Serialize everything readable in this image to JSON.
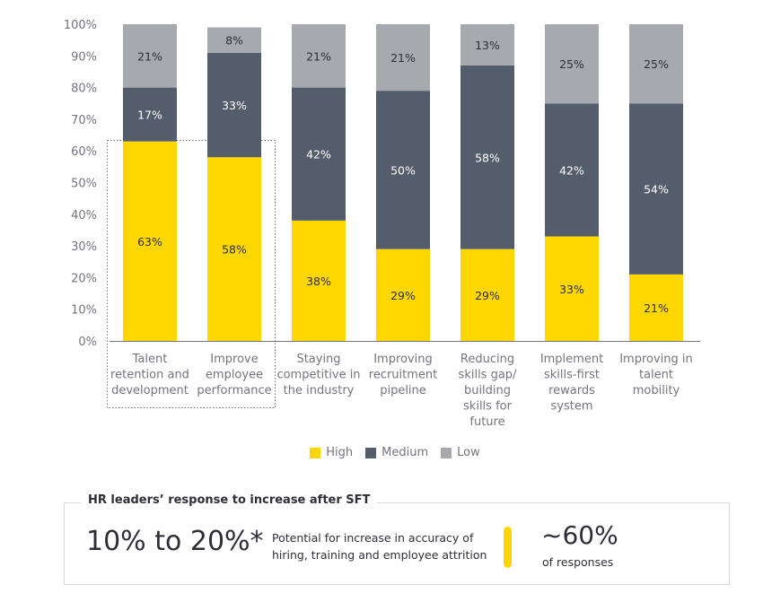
{
  "chart_data": {
    "type": "bar",
    "stacked": true,
    "categories": [
      [
        "Talent",
        "retention and",
        "development"
      ],
      [
        "Improve",
        "employee",
        "performance"
      ],
      [
        "Staying",
        "competitive in",
        "the industry"
      ],
      [
        "Improving",
        "recruitment",
        "pipeline"
      ],
      [
        "Reducing",
        "skills gap/",
        "building",
        "skills for",
        "future"
      ],
      [
        "Implement",
        "skills-first",
        "rewards",
        "system"
      ],
      [
        "Improving in",
        "talent",
        "mobility"
      ]
    ],
    "series": [
      {
        "name": "High",
        "color": "#ffd700",
        "values": [
          63,
          58,
          38,
          29,
          29,
          33,
          21
        ],
        "labels": [
          "63%",
          "58%",
          "38%",
          "29%",
          "29%",
          "33%",
          "21%"
        ]
      },
      {
        "name": "Medium",
        "color": "#545d6b",
        "values": [
          17,
          33,
          42,
          50,
          58,
          42,
          54
        ],
        "labels": [
          "17%",
          "33%",
          "42%",
          "50%",
          "58%",
          "42%",
          "54%"
        ]
      },
      {
        "name": "Low",
        "color": "#a6a9ae",
        "values": [
          21,
          8,
          21,
          21,
          13,
          25,
          25
        ],
        "labels": [
          "21%",
          "8%",
          "21%",
          "21%",
          "13%",
          "25%",
          "25%"
        ]
      }
    ],
    "yticks": [
      "0%",
      "10%",
      "20%",
      "30%",
      "40%",
      "50%",
      "60%",
      "70%",
      "80%",
      "90%",
      "100%"
    ],
    "ylim": [
      0,
      100
    ],
    "highlight_box": "first two categories",
    "legend_position": "bottom"
  },
  "panel": {
    "title": "HR leaders’ response to increase after SFT",
    "big_value": "10% to 20%*",
    "description_line1": "Potential for increase in accuracy of",
    "description_line2": "hiring, training and employee attrition",
    "percent": "~60%",
    "percent_sub": "of responses",
    "accent_color": "#ffd700"
  }
}
